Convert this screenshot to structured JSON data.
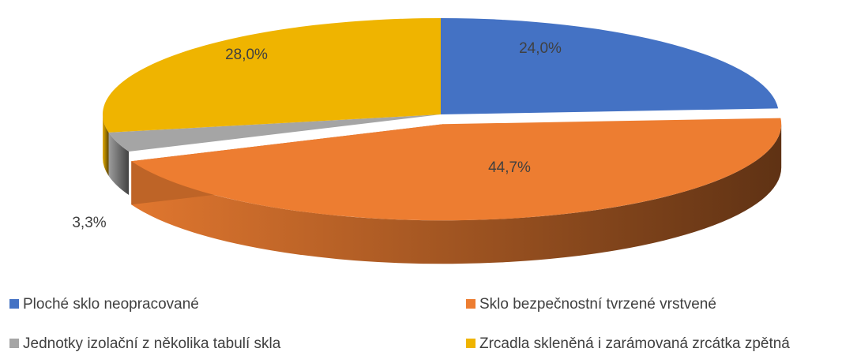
{
  "chart_data": {
    "type": "pie",
    "categories": [
      "Ploché sklo neopracované",
      "Sklo bezpečnostní tvrzené vrstvené",
      "Jednotky izolační z několika tabulí skla",
      "Zrcadla skleněná i zarámovaná zrcátka zpětná"
    ],
    "values": [
      24.0,
      44.7,
      3.3,
      28.0
    ],
    "value_labels": [
      "24,0%",
      "44,7%",
      "3,3%",
      "28,0%"
    ],
    "colors": [
      "#4472c4",
      "#ed7d31",
      "#a5a5a5",
      "#efb400"
    ],
    "legend": "bottom"
  }
}
